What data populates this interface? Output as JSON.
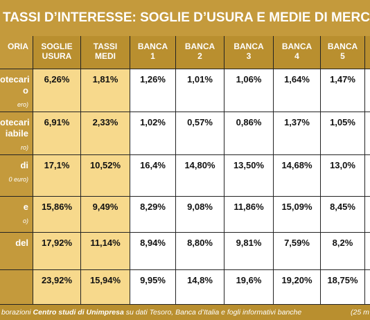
{
  "header": {
    "title": "TASSI D’INTERESSE: SOGLIE D’USURA E MEDIE DI MERCATO"
  },
  "table": {
    "columns": [
      [
        "ORIA"
      ],
      [
        "SOGLIE",
        "USURA"
      ],
      [
        "TASSI",
        "MEDI"
      ],
      [
        "BANCA",
        "1"
      ],
      [
        "BANCA",
        "2"
      ],
      [
        "BANCA",
        "3"
      ],
      [
        "BANCA",
        "4"
      ],
      [
        "BANCA",
        "5"
      ]
    ],
    "rows": [
      {
        "label": [
          "otecari",
          "o"
        ],
        "note": "ero)",
        "cells": [
          "6,26%",
          "1,81%",
          "1,26%",
          "1,01%",
          "1,06%",
          "1,64%",
          "1,47%"
        ]
      },
      {
        "label": [
          "otecari",
          "iabile"
        ],
        "note": "ro)",
        "cells": [
          "6,91%",
          "2,33%",
          "1,02%",
          "0,57%",
          "0,86%",
          "1,37%",
          "1,05%"
        ]
      },
      {
        "label": [
          "di"
        ],
        "note": "0 euro)",
        "cells": [
          "17,1%",
          "10,52%",
          "16,4%",
          "14,80%",
          "13,50%",
          "14,68%",
          "13,0%"
        ]
      },
      {
        "label": [
          "e"
        ],
        "note": "o)",
        "cells": [
          "15,86%",
          "9,49%",
          "8,29%",
          "9,08%",
          "11,86%",
          "15,09%",
          "8,45%"
        ]
      },
      {
        "label": [
          "del"
        ],
        "cells": [
          "17,92%",
          "11,14%",
          "8,94%",
          "8,80%",
          "9,81%",
          "7,59%",
          "8,2%"
        ]
      },
      {
        "label": [],
        "cells": [
          "23,92%",
          "15,94%",
          "9,95%",
          "14,8%",
          "19,6%",
          "19,20%",
          "18,75%"
        ]
      }
    ]
  },
  "footer": {
    "prefix": "borazioni ",
    "org": "Centro studi di Unimpresa",
    "rest": " su dati Tesoro, Banca d’Italia e fogli informativi banche",
    "date": "(25 m"
  }
}
